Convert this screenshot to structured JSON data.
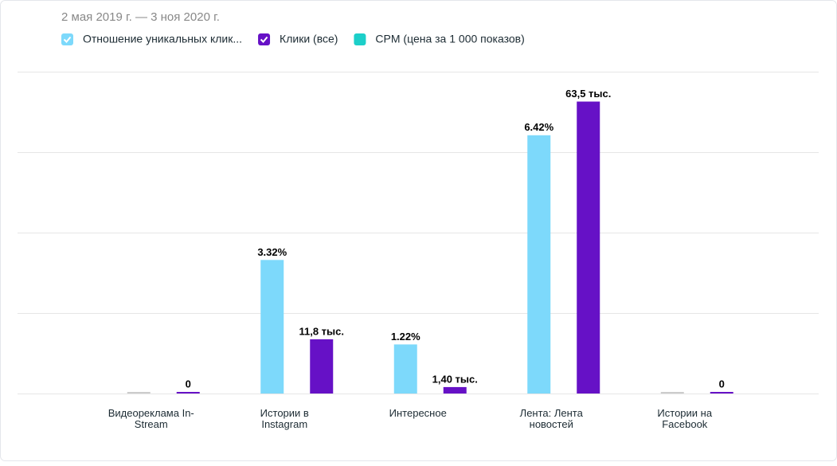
{
  "chart_data": {
    "type": "bar",
    "subtitle": "2 мая 2019 г. — 3 ноя 2020 г.",
    "categories": [
      "Видеореклама In-Stream",
      "Истории в Instagram",
      "Интересное",
      "Лента: Лента новостей",
      "Истории на Facebook"
    ],
    "series": [
      {
        "name": "Отношение уникальных клик...",
        "color": "#7dd9fb",
        "checked": true,
        "values": [
          0,
          3.32,
          1.22,
          6.42,
          0
        ],
        "value_labels": [
          null,
          "3.32%",
          "1.22%",
          "6.42%",
          null
        ]
      },
      {
        "name": "Клики (все)",
        "color": "#6611c6",
        "checked": true,
        "axis": "y2",
        "values": [
          0,
          11800,
          1400,
          63500,
          0
        ],
        "value_labels": [
          "0",
          "11,8 тыс.",
          "1,40 тыс.",
          "63,5 тыс.",
          "0"
        ]
      },
      {
        "name": "CPM (цена за 1 000 показов)",
        "color": "#1ccfc9",
        "checked": false,
        "values": [
          null,
          null,
          null,
          null,
          null
        ]
      }
    ],
    "ylim": [
      0,
      8
    ],
    "y2lim": [
      0,
      70000
    ],
    "grid": true
  }
}
